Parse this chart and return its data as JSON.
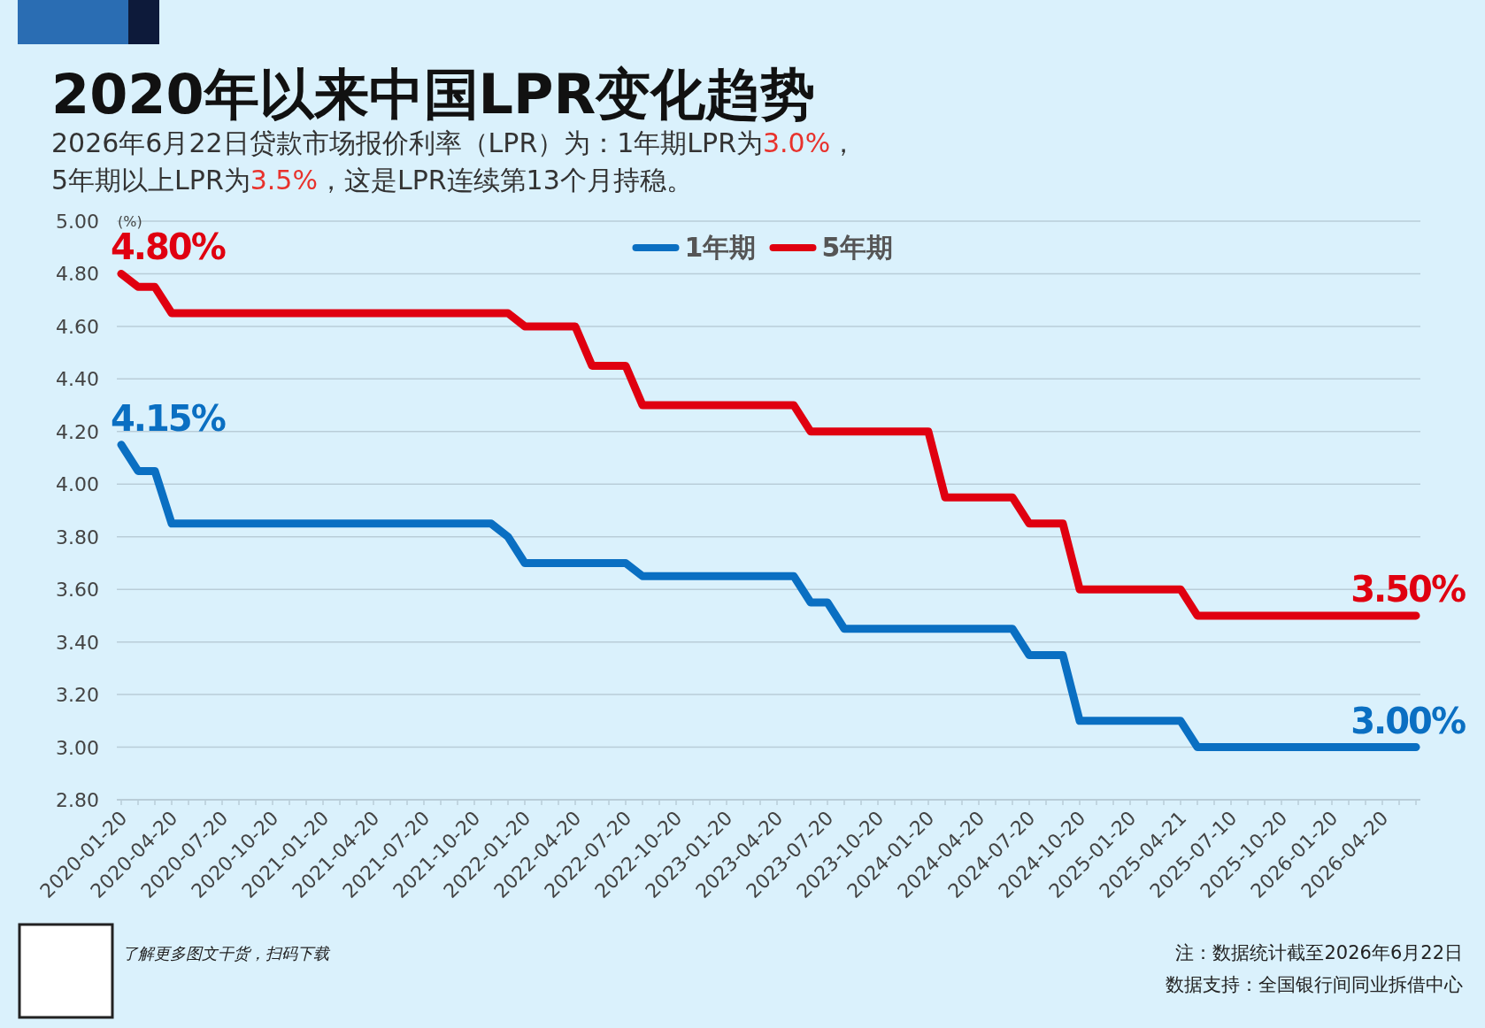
{
  "chart_data": {
    "type": "line",
    "title": "2020年以来中国LPR变化趋势",
    "subtitle": [
      "2026年6月22日贷款市场报价利率（LPR）为：1年期LPR为3.0%，",
      "5年期以上LPR为3.5%，这是LPR连续第13个月持稳。"
    ],
    "ylabel": "(%)",
    "categories": [
      "2020-01-20",
      null,
      null,
      "2020-04-20",
      null,
      null,
      "2020-07-20",
      null,
      null,
      "2020-10-20",
      null,
      null,
      "2021-01-20",
      null,
      null,
      "2021-04-20",
      null,
      null,
      "2021-07-20",
      null,
      null,
      "2021-10-20",
      null,
      null,
      "2022-01-20",
      null,
      null,
      "2022-04-20",
      null,
      null,
      "2022-07-20",
      null,
      null,
      "2022-10-20",
      null,
      null,
      "2023-01-20",
      null,
      null,
      "2023-04-20",
      null,
      null,
      "2023-07-20",
      null,
      null,
      "2023-10-20",
      null,
      null,
      "2024-01-20",
      null,
      null,
      "2024-04-20",
      null,
      null,
      "2024-07-20",
      null,
      null,
      "2024-10-20",
      null,
      null,
      "2025-01-20",
      null,
      null,
      "2025-04-21",
      null,
      null,
      "2025-07-10",
      null,
      null,
      "2025-10-20",
      null,
      null,
      "2026-01-20",
      null,
      null,
      "2026-04-20",
      null,
      null
    ],
    "series": [
      {
        "name": "1年期",
        "color": "#0a6fc2",
        "values": [
          4.15,
          4.05,
          4.05,
          3.85,
          3.85,
          3.85,
          3.85,
          3.85,
          3.85,
          3.85,
          3.85,
          3.85,
          3.85,
          3.85,
          3.85,
          3.85,
          3.85,
          3.85,
          3.85,
          3.85,
          3.85,
          3.85,
          3.85,
          3.8,
          3.7,
          3.7,
          3.7,
          3.7,
          3.7,
          3.7,
          3.7,
          3.65,
          3.65,
          3.65,
          3.65,
          3.65,
          3.65,
          3.65,
          3.65,
          3.65,
          3.65,
          3.55,
          3.55,
          3.45,
          3.45,
          3.45,
          3.45,
          3.45,
          3.45,
          3.45,
          3.45,
          3.45,
          3.45,
          3.45,
          3.35,
          3.35,
          3.35,
          3.1,
          3.1,
          3.1,
          3.1,
          3.1,
          3.1,
          3.1,
          3.0,
          3.0,
          3.0,
          3.0,
          3.0,
          3.0,
          3.0,
          3.0,
          3.0,
          3.0,
          3.0,
          3.0,
          3.0,
          3.0
        ],
        "value_labels": [
          "4.15%",
          null,
          null,
          null,
          null,
          null,
          null,
          null,
          null,
          null,
          null,
          null,
          null,
          null,
          null,
          null,
          null,
          null,
          null,
          null,
          null,
          null,
          null,
          null,
          null,
          null,
          null,
          null,
          null,
          null,
          null,
          null,
          null,
          null,
          null,
          null,
          null,
          null,
          null,
          null,
          null,
          null,
          null,
          null,
          null,
          null,
          null,
          null,
          null,
          null,
          null,
          null,
          null,
          null,
          null,
          null,
          null,
          null,
          null,
          null,
          null,
          null,
          null,
          null,
          null,
          null,
          null,
          null,
          null,
          null,
          null,
          null,
          null,
          null,
          null,
          null,
          null,
          "3.00%"
        ]
      },
      {
        "name": "5年期",
        "color": "#e00010",
        "values": [
          4.8,
          4.75,
          4.75,
          4.65,
          4.65,
          4.65,
          4.65,
          4.65,
          4.65,
          4.65,
          4.65,
          4.65,
          4.65,
          4.65,
          4.65,
          4.65,
          4.65,
          4.65,
          4.65,
          4.65,
          4.65,
          4.65,
          4.65,
          4.65,
          4.6,
          4.6,
          4.6,
          4.6,
          4.45,
          4.45,
          4.45,
          4.3,
          4.3,
          4.3,
          4.3,
          4.3,
          4.3,
          4.3,
          4.3,
          4.3,
          4.3,
          4.2,
          4.2,
          4.2,
          4.2,
          4.2,
          4.2,
          4.2,
          4.2,
          3.95,
          3.95,
          3.95,
          3.95,
          3.95,
          3.85,
          3.85,
          3.85,
          3.6,
          3.6,
          3.6,
          3.6,
          3.6,
          3.6,
          3.6,
          3.5,
          3.5,
          3.5,
          3.5,
          3.5,
          3.5,
          3.5,
          3.5,
          3.5,
          3.5,
          3.5,
          3.5,
          3.5,
          3.5
        ],
        "value_labels": [
          "4.80%",
          null,
          null,
          null,
          null,
          null,
          null,
          null,
          null,
          null,
          null,
          null,
          null,
          null,
          null,
          null,
          null,
          null,
          null,
          null,
          null,
          null,
          null,
          null,
          null,
          null,
          null,
          null,
          null,
          null,
          null,
          null,
          null,
          null,
          null,
          null,
          null,
          null,
          null,
          null,
          null,
          null,
          null,
          null,
          null,
          null,
          null,
          null,
          null,
          null,
          null,
          null,
          null,
          null,
          null,
          null,
          null,
          null,
          null,
          null,
          null,
          null,
          null,
          null,
          null,
          null,
          null,
          null,
          null,
          null,
          null,
          null,
          null,
          null,
          null,
          null,
          null,
          "3.50%"
        ]
      }
    ],
    "ylim": [
      2.8,
      5.0
    ],
    "yticks": [
      {
        "value": 2.8,
        "label": "2.80"
      },
      {
        "value": 3.0,
        "label": "3.00"
      },
      {
        "value": 3.2,
        "label": "3.20"
      },
      {
        "value": 3.4,
        "label": "3.40"
      },
      {
        "value": 3.6,
        "label": "3.60"
      },
      {
        "value": 3.8,
        "label": "3.80"
      },
      {
        "value": 4.0,
        "label": "4.00"
      },
      {
        "value": 4.2,
        "label": "4.20"
      },
      {
        "value": 4.4,
        "label": "4.40"
      },
      {
        "value": 4.6,
        "label": "4.60"
      },
      {
        "value": 4.8,
        "label": "4.80"
      },
      {
        "value": 5.0,
        "label": "5.00"
      }
    ],
    "grid": "y",
    "legend": "top",
    "marker": "none",
    "line_style": "solid",
    "annotations": [
      "了解更多图文干货，扫码下载",
      "注：数据统计截至2026年6月22日",
      "数据支持：全国银行间同业拆借中心"
    ]
  }
}
